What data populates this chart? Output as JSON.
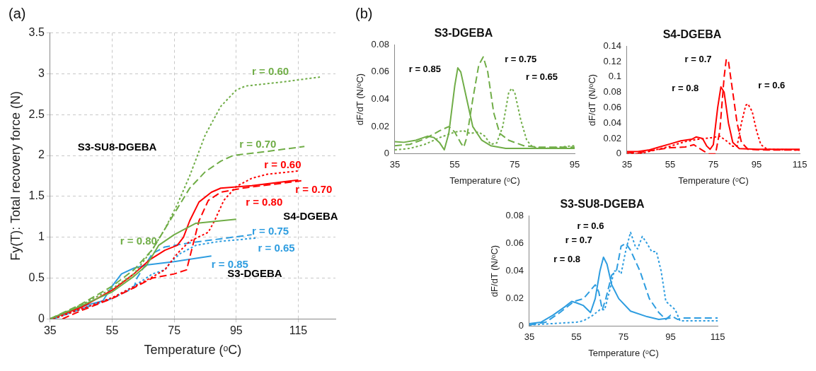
{
  "chart_data": [
    {
      "type": "line",
      "xlabel": "Temperature (ᵒC)",
      "ylabel": "Fy(T): Total recovery force (N)",
      "xlim": [
        35,
        127
      ],
      "xticks": [
        35,
        55,
        75,
        95,
        115
      ],
      "ylim": [
        0,
        3.5
      ],
      "yticks": [
        0,
        0.5,
        1,
        1.5,
        2,
        2.5,
        3,
        3.5
      ],
      "grid": true,
      "annotations": [
        "(a)",
        "r = 0.60",
        "r = 0.70",
        "r = 0.80",
        "S3-SU8-DGEBA",
        "r = 0.60",
        "r = 0.70",
        "r = 0.80",
        "S4-DGEBA",
        "r = 0.75",
        "r = 0.65",
        "r = 0.85",
        "S3-DGEBA"
      ],
      "series": [
        {
          "color": "#70ad47",
          "line_style": "dotted",
          "x": [
            35,
            45,
            55,
            62,
            68,
            72,
            76,
            80,
            85,
            90,
            95,
            98,
            110,
            122
          ],
          "values": [
            0,
            0.17,
            0.37,
            0.55,
            0.85,
            1.1,
            1.4,
            1.75,
            2.25,
            2.6,
            2.8,
            2.85,
            2.9,
            2.96
          ]
        },
        {
          "color": "#70ad47",
          "line_style": "dashed",
          "x": [
            35,
            45,
            55,
            62,
            68,
            72,
            76,
            80,
            85,
            90,
            94,
            105,
            117
          ],
          "values": [
            0,
            0.18,
            0.4,
            0.6,
            0.85,
            1.1,
            1.35,
            1.6,
            1.8,
            1.93,
            2.0,
            2.05,
            2.11
          ]
        },
        {
          "color": "#70ad47",
          "line_style": "solid",
          "x": [
            35,
            45,
            55,
            62,
            66,
            70,
            75,
            82,
            95
          ],
          "values": [
            0,
            0.16,
            0.33,
            0.52,
            0.65,
            0.9,
            1.03,
            1.17,
            1.22
          ]
        },
        {
          "color": "#ff0000",
          "line_style": "solid",
          "x": [
            35,
            45,
            55,
            62,
            67,
            72,
            76,
            78,
            80,
            83,
            87,
            90,
            100,
            115
          ],
          "values": [
            0,
            0.14,
            0.35,
            0.55,
            0.72,
            0.84,
            0.9,
            1.0,
            1.2,
            1.43,
            1.55,
            1.6,
            1.63,
            1.7
          ]
        },
        {
          "color": "#ff0000",
          "line_style": "dashed",
          "x": [
            39,
            45,
            55,
            62,
            68,
            75,
            79,
            81,
            83,
            86,
            90,
            97,
            116
          ],
          "values": [
            0,
            0.1,
            0.25,
            0.38,
            0.5,
            0.55,
            0.6,
            0.9,
            1.2,
            1.45,
            1.55,
            1.6,
            1.69
          ]
        },
        {
          "color": "#ff0000",
          "line_style": "dotted",
          "x": [
            36,
            45,
            55,
            65,
            72,
            76,
            80,
            86,
            88,
            91,
            95,
            100,
            105,
            115
          ],
          "values": [
            0,
            0.12,
            0.26,
            0.45,
            0.6,
            0.8,
            0.95,
            1.06,
            1.2,
            1.45,
            1.62,
            1.72,
            1.77,
            1.81
          ]
        },
        {
          "color": "#2e9de0",
          "line_style": "solid",
          "x": [
            35,
            45,
            52,
            55,
            58,
            62,
            66,
            75,
            87
          ],
          "values": [
            0,
            0.15,
            0.22,
            0.4,
            0.55,
            0.62,
            0.66,
            0.7,
            0.77
          ]
        },
        {
          "color": "#2e9de0",
          "line_style": "dashed",
          "x": [
            36,
            45,
            55,
            62,
            63,
            65,
            68,
            72,
            80,
            90,
            98,
            100
          ],
          "values": [
            0,
            0.12,
            0.25,
            0.38,
            0.5,
            0.62,
            0.8,
            0.88,
            0.93,
            0.98,
            1.02,
            1.03
          ]
        },
        {
          "color": "#2e9de0",
          "line_style": "dotted",
          "x": [
            36,
            45,
            55,
            62,
            68,
            72,
            74,
            77,
            82,
            90,
            102
          ],
          "values": [
            0,
            0.12,
            0.25,
            0.4,
            0.55,
            0.6,
            0.7,
            0.8,
            0.9,
            0.95,
            0.99
          ]
        }
      ]
    },
    {
      "type": "line",
      "title": "S3-DGEBA",
      "xlabel": "Temperature (ᵒC)",
      "ylabel": "dF/dT (N/ᵒC)",
      "xlim": [
        35,
        95
      ],
      "xticks": [
        35,
        55,
        75,
        95
      ],
      "ylim": [
        0,
        0.08
      ],
      "yticks": [
        0,
        0.02,
        0.04,
        0.06,
        0.08
      ],
      "annotations": [
        "(b)",
        "r = 0.85",
        "r = 0.75",
        "r = 0.65"
      ],
      "series": [
        {
          "color": "#70ad47",
          "line_style": "solid",
          "x": [
            35,
            38,
            42,
            46,
            48,
            50,
            51.5,
            53,
            55,
            56,
            57,
            59,
            61,
            64,
            67,
            72,
            80,
            95
          ],
          "values": [
            0.009,
            0.0085,
            0.01,
            0.013,
            0.012,
            0.008,
            0.003,
            0.015,
            0.05,
            0.063,
            0.06,
            0.04,
            0.02,
            0.01,
            0.006,
            0.004,
            0.004,
            0.004
          ]
        },
        {
          "color": "#70ad47",
          "line_style": "dashed",
          "x": [
            35,
            40,
            45,
            50,
            53,
            55,
            57,
            58,
            59,
            61,
            63,
            64.5,
            66,
            68,
            70,
            73,
            78,
            83,
            95
          ],
          "values": [
            0.006,
            0.007,
            0.011,
            0.017,
            0.02,
            0.016,
            0.008,
            0.005,
            0.012,
            0.04,
            0.065,
            0.071,
            0.06,
            0.03,
            0.015,
            0.01,
            0.006,
            0.005,
            0.005
          ]
        },
        {
          "color": "#70ad47",
          "line_style": "dotted",
          "x": [
            35,
            40,
            45,
            50,
            55,
            58,
            60,
            63,
            65,
            67,
            69,
            71,
            73,
            74,
            75,
            77,
            79,
            81,
            85,
            95
          ],
          "values": [
            0.003,
            0.004,
            0.007,
            0.012,
            0.016,
            0.017,
            0.015,
            0.016,
            0.013,
            0.007,
            0.008,
            0.02,
            0.045,
            0.048,
            0.045,
            0.025,
            0.01,
            0.005,
            0.004,
            0.006
          ]
        }
      ]
    },
    {
      "type": "line",
      "title": "S4-DGEBA",
      "xlabel": "Temperature (ᵒC)",
      "ylabel": "dF/dT (N/ᵒC)",
      "xlim": [
        35,
        115
      ],
      "xticks": [
        35,
        55,
        75,
        95,
        115
      ],
      "ylim": [
        0,
        0.14
      ],
      "yticks": [
        0,
        0.02,
        0.04,
        0.06,
        0.08,
        0.1,
        0.12,
        0.14
      ],
      "annotations": [
        "r = 0.7",
        "r = 0.8",
        "r = 0.6"
      ],
      "series": [
        {
          "color": "#ff0000",
          "line_style": "solid",
          "x": [
            35,
            40,
            45,
            50,
            55,
            60,
            65,
            67,
            70,
            72,
            73.5,
            75,
            77,
            78.5,
            80,
            82,
            84,
            87,
            95,
            115
          ],
          "values": [
            0.003,
            0.003,
            0.005,
            0.009,
            0.013,
            0.017,
            0.019,
            0.022,
            0.02,
            0.01,
            0.006,
            0.012,
            0.06,
            0.087,
            0.08,
            0.04,
            0.015,
            0.007,
            0.006,
            0.006
          ]
        },
        {
          "color": "#ff0000",
          "line_style": "dashed",
          "x": [
            35,
            40,
            45,
            55,
            62,
            66,
            68,
            71,
            73,
            76,
            78,
            80,
            81,
            82,
            84,
            86,
            88,
            91,
            100,
            115
          ],
          "values": [
            0.002,
            0.001,
            0.004,
            0.008,
            0.009,
            0.012,
            0.008,
            0.003,
            0,
            0,
            0.03,
            0.1,
            0.123,
            0.12,
            0.08,
            0.04,
            0.015,
            0.006,
            0.005,
            0.005
          ]
        },
        {
          "color": "#ff0000",
          "line_style": "dotted",
          "x": [
            35,
            40,
            45,
            55,
            62,
            68,
            74,
            78,
            81,
            84,
            86,
            88,
            90,
            91,
            93,
            95,
            97,
            100,
            115
          ],
          "values": [
            0,
            0,
            0.003,
            0.01,
            0.016,
            0.019,
            0.021,
            0.023,
            0.017,
            0.01,
            0.01,
            0.04,
            0.063,
            0.065,
            0.055,
            0.03,
            0.012,
            0.006,
            0.005
          ]
        }
      ]
    },
    {
      "type": "line",
      "title": "S3-SU8-DGEBA",
      "xlabel": "Temperature (ᵒC)",
      "ylabel": "dF/dT (N/ᵒC)",
      "xlim": [
        35,
        115
      ],
      "xticks": [
        35,
        55,
        75,
        95,
        115
      ],
      "ylim": [
        0,
        0.08
      ],
      "yticks": [
        0,
        0.02,
        0.04,
        0.06,
        0.08
      ],
      "annotations": [
        "r = 0.6",
        "r = 0.7",
        "r = 0.8"
      ],
      "series": [
        {
          "color": "#2e9de0",
          "line_style": "solid",
          "x": [
            35,
            40,
            45,
            50,
            53,
            55,
            58,
            61,
            63,
            65,
            66.5,
            68,
            70,
            73,
            78,
            85,
            90,
            95
          ],
          "values": [
            0.002,
            0.003,
            0.008,
            0.014,
            0.018,
            0.017,
            0.015,
            0.01,
            0.02,
            0.04,
            0.05,
            0.045,
            0.03,
            0.02,
            0.011,
            0.007,
            0.005,
            0.006
          ]
        },
        {
          "color": "#2e9de0",
          "line_style": "dashed",
          "x": [
            35,
            42,
            48,
            54,
            58,
            61,
            63,
            64.5,
            66,
            67.5,
            70,
            72,
            74,
            76,
            78,
            82,
            86,
            90,
            93,
            95,
            98,
            100,
            115
          ],
          "values": [
            0.001,
            0.003,
            0.01,
            0.018,
            0.02,
            0.026,
            0.03,
            0.025,
            0.012,
            0.02,
            0.037,
            0.04,
            0.058,
            0.06,
            0.055,
            0.04,
            0.02,
            0.01,
            0.005,
            0.008,
            0.005,
            0.006,
            0.006
          ]
        },
        {
          "color": "#2e9de0",
          "line_style": "dotted",
          "x": [
            35,
            45,
            55,
            58,
            62,
            65,
            67,
            69,
            71,
            73,
            74,
            76,
            78,
            80,
            81,
            83,
            85,
            87,
            89,
            91,
            93,
            95,
            97,
            99,
            115
          ],
          "values": [
            0.001,
            0.002,
            0.003,
            0.004,
            0.008,
            0.012,
            0.012,
            0.025,
            0.04,
            0.04,
            0.038,
            0.055,
            0.068,
            0.058,
            0.056,
            0.065,
            0.06,
            0.054,
            0.054,
            0.04,
            0.018,
            0.015,
            0.012,
            0.004,
            0.004
          ]
        }
      ]
    }
  ]
}
